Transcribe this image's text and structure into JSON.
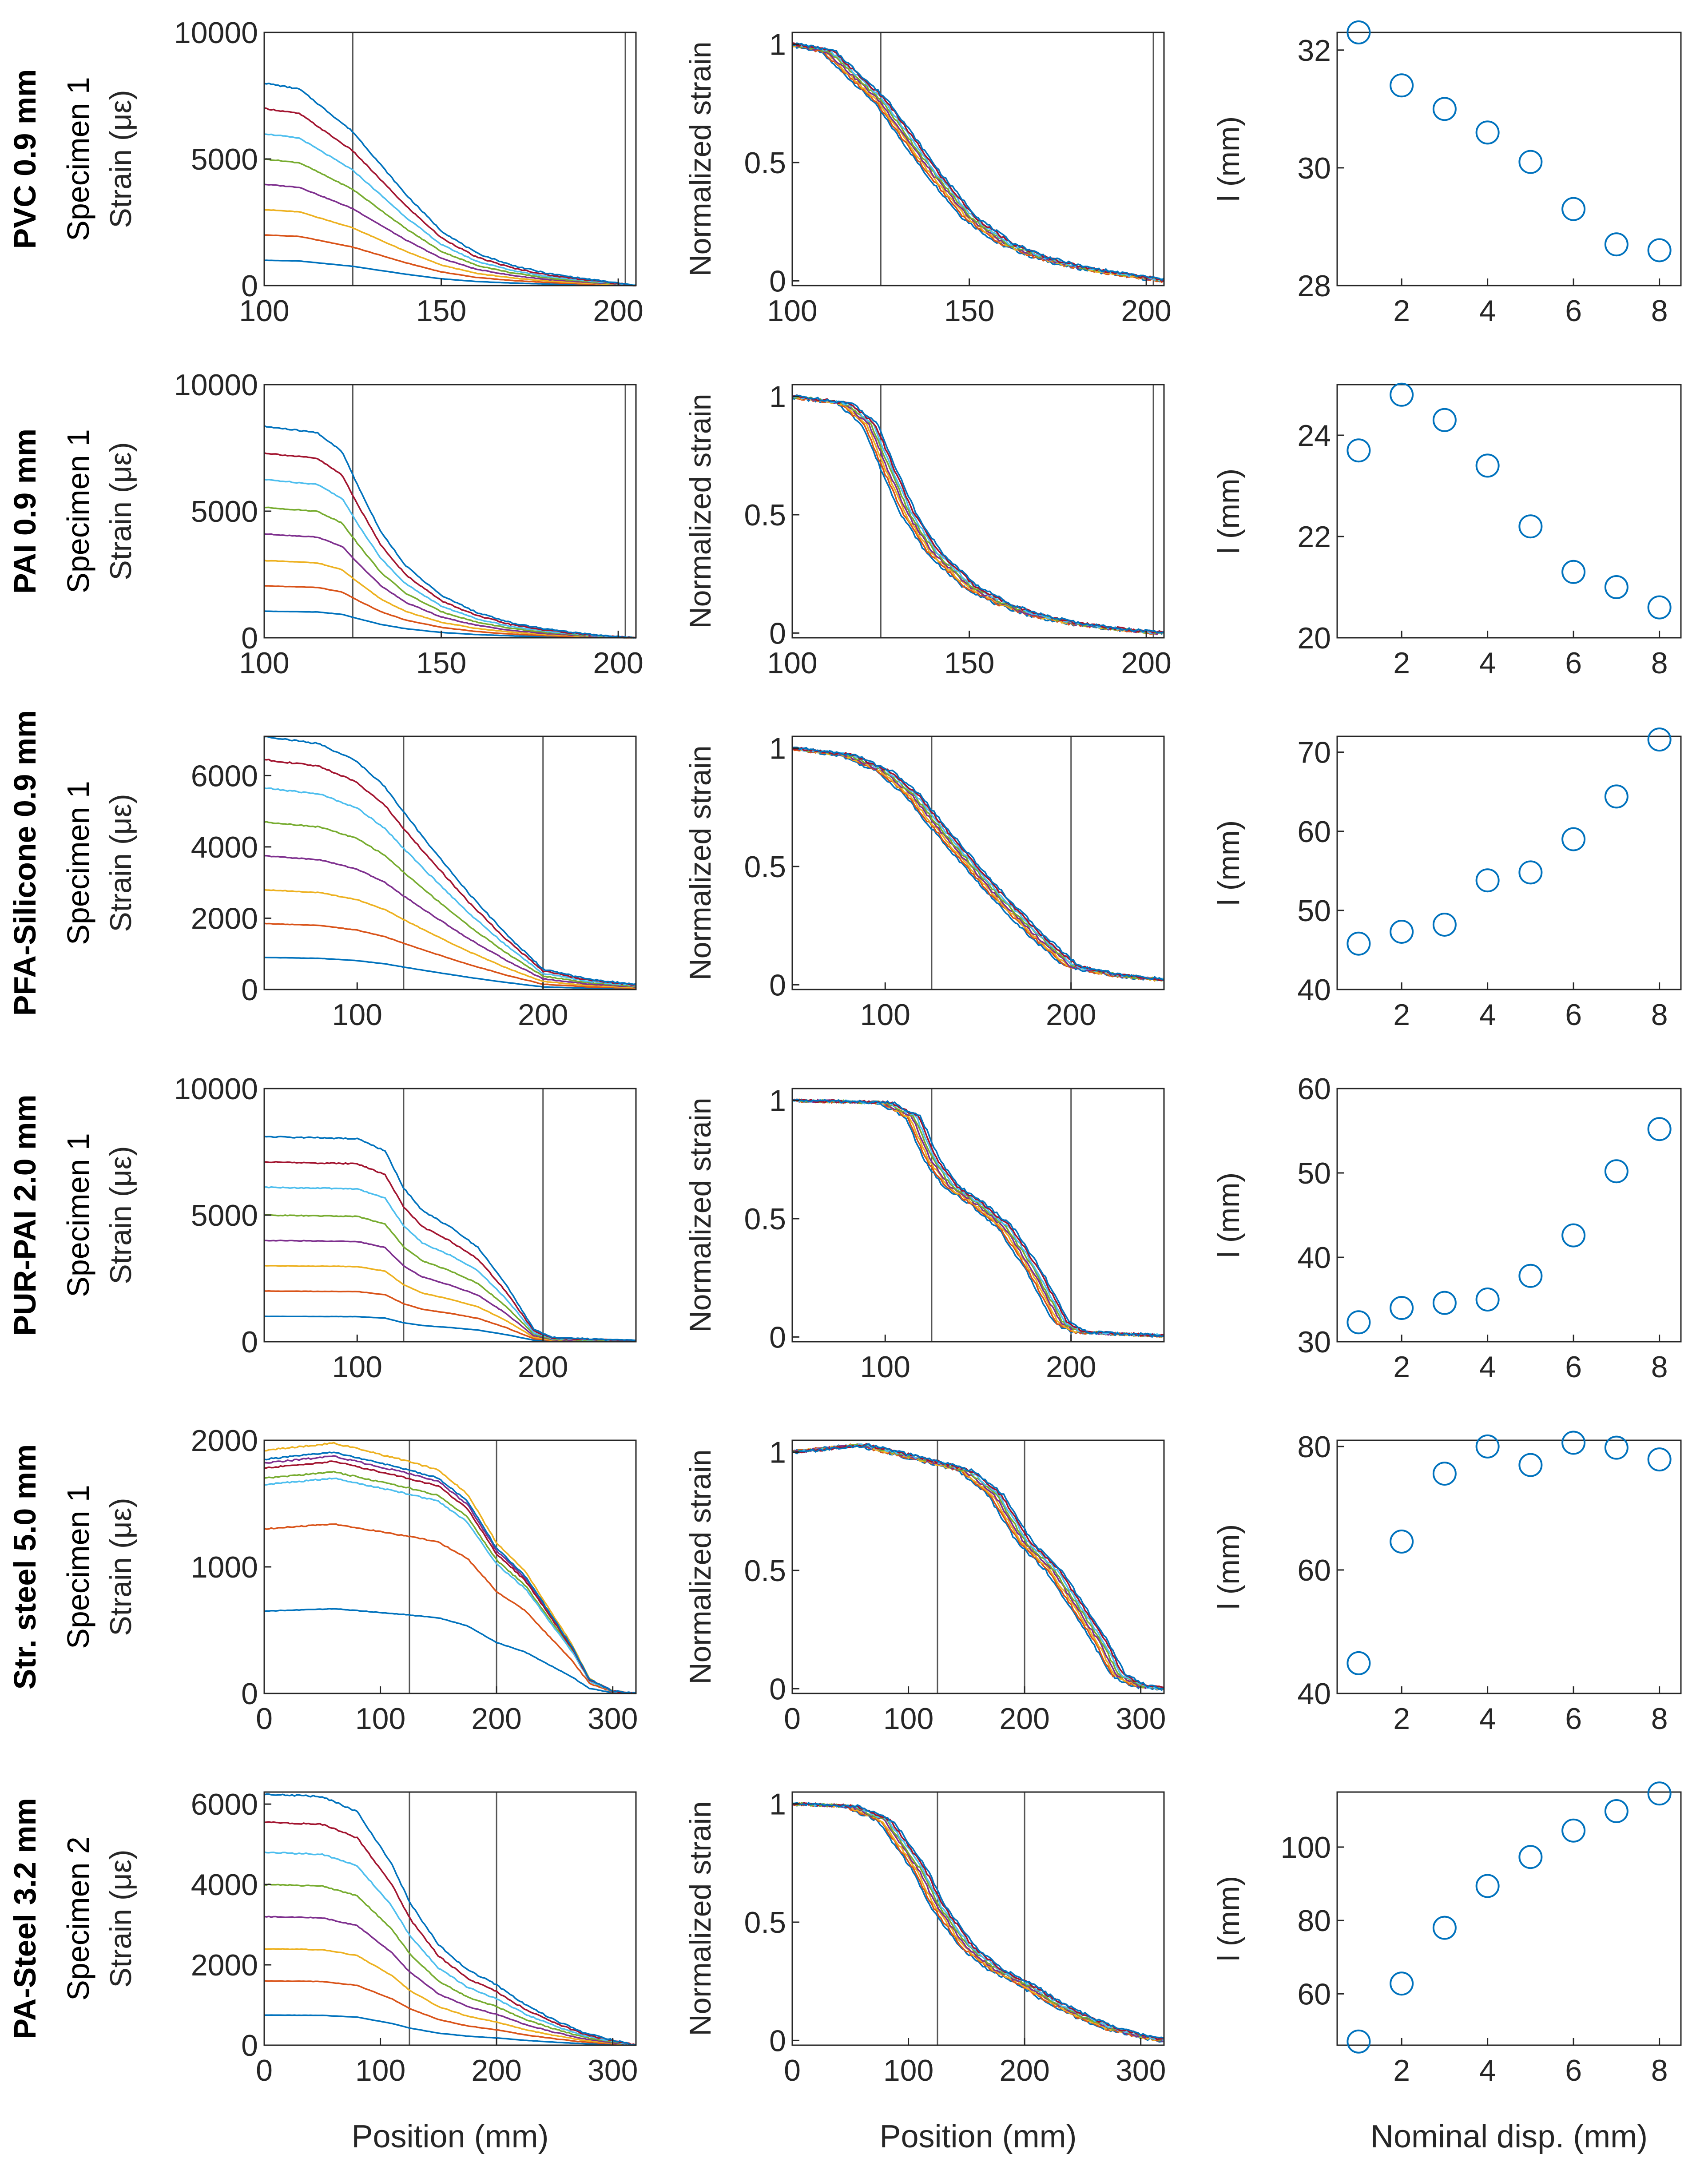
{
  "chart_data": {
    "type": "line-and-scatter-grid",
    "series_colors": [
      "#0072BD",
      "#D95319",
      "#EDB120",
      "#7E2F8E",
      "#77AC30",
      "#4DBEEE",
      "#A2142F",
      "#0072BD"
    ],
    "marker_color": "#0072BD",
    "column_xlabels": [
      "Position (mm)",
      "Position (mm)",
      "Nominal disp. (mm)"
    ],
    "normalized_ylabel": "Normalized strain",
    "l_ylabel": "l (mm)",
    "nominal_disp": [
      1,
      2,
      3,
      4,
      5,
      6,
      7,
      8
    ],
    "rows": [
      {
        "material": "PVC 0.9 mm",
        "specimen": "Specimen 1",
        "strain_label": "Strain (με)",
        "xlim": [
          100,
          205
        ],
        "xticks": [
          "100",
          "150",
          "200"
        ],
        "strain_ylim": [
          0,
          10000
        ],
        "strain_yticks": [
          "0",
          "5000",
          "10000"
        ],
        "norm_yticks": [
          "0",
          "0.5",
          "1"
        ],
        "vlines": [
          125,
          202
        ],
        "plateau": [
          1000,
          2000,
          3000,
          4000,
          5000,
          6000,
          7000,
          8000
        ],
        "norm_profile": [
          [
            100,
            1.0
          ],
          [
            110,
            0.97
          ],
          [
            125,
            0.76
          ],
          [
            140,
            0.45
          ],
          [
            150,
            0.27
          ],
          [
            160,
            0.16
          ],
          [
            170,
            0.1
          ],
          [
            180,
            0.06
          ],
          [
            190,
            0.035
          ],
          [
            200,
            0.012
          ],
          [
            205,
            0.0
          ]
        ],
        "l_values": [
          32.3,
          31.4,
          31.0,
          30.6,
          30.1,
          29.3,
          28.7,
          28.6
        ],
        "l_ylim": [
          28,
          32.3
        ],
        "l_yticks": [
          "28",
          "30",
          "32"
        ]
      },
      {
        "material": "PAI 0.9 mm",
        "specimen": "Specimen 1",
        "strain_label": "Strain (με)",
        "xlim": [
          100,
          205
        ],
        "xticks": [
          "100",
          "150",
          "200"
        ],
        "strain_ylim": [
          0,
          10000
        ],
        "strain_yticks": [
          "0",
          "5000",
          "10000"
        ],
        "norm_yticks": [
          "0",
          "0.5",
          "1"
        ],
        "vlines": [
          125,
          202
        ],
        "plateau": [
          1050,
          2050,
          3050,
          4100,
          5150,
          6250,
          7300,
          8350
        ],
        "norm_profile": [
          [
            100,
            1.0
          ],
          [
            115,
            0.97
          ],
          [
            122,
            0.88
          ],
          [
            127,
            0.7
          ],
          [
            133,
            0.5
          ],
          [
            140,
            0.34
          ],
          [
            150,
            0.2
          ],
          [
            160,
            0.12
          ],
          [
            170,
            0.07
          ],
          [
            180,
            0.04
          ],
          [
            190,
            0.02
          ],
          [
            200,
            0.005
          ],
          [
            205,
            0.0
          ]
        ],
        "l_values": [
          23.7,
          24.8,
          24.3,
          23.4,
          22.2,
          21.3,
          21.0,
          20.6
        ],
        "l_ylim": [
          20,
          25
        ],
        "l_yticks": [
          "20",
          "22",
          "24"
        ]
      },
      {
        "material": "PFA-Silicone 0.9 mm",
        "specimen": "Specimen 1",
        "strain_label": "Strain (με)",
        "xlim": [
          50,
          250
        ],
        "xticks": [
          "100",
          "200"
        ],
        "strain_ylim": [
          0,
          7100
        ],
        "strain_yticks": [
          "0",
          "2000",
          "4000",
          "6000"
        ],
        "norm_yticks": [
          "0",
          "0.5",
          "1"
        ],
        "vlines": [
          125,
          200
        ],
        "plateau": [
          900,
          1850,
          2800,
          3750,
          4700,
          5650,
          6450,
          7100
        ],
        "norm_profile": [
          [
            50,
            1.0
          ],
          [
            80,
            0.97
          ],
          [
            100,
            0.9
          ],
          [
            115,
            0.8
          ],
          [
            125,
            0.7
          ],
          [
            140,
            0.56
          ],
          [
            160,
            0.38
          ],
          [
            180,
            0.22
          ],
          [
            200,
            0.08
          ],
          [
            225,
            0.04
          ],
          [
            250,
            0.02
          ]
        ],
        "l_values": [
          45.8,
          47.3,
          48.2,
          53.8,
          54.8,
          59.0,
          64.4,
          71.6
        ],
        "l_ylim": [
          40,
          72
        ],
        "l_yticks": [
          "40",
          "50",
          "60",
          "70"
        ]
      },
      {
        "material": "PUR-PAI 2.0 mm",
        "specimen": "Specimen 1",
        "strain_label": "Strain (με)",
        "xlim": [
          50,
          250
        ],
        "xticks": [
          "100",
          "200"
        ],
        "strain_ylim": [
          0,
          10000
        ],
        "strain_yticks": [
          "0",
          "5000",
          "10000"
        ],
        "norm_yticks": [
          "0",
          "0.5",
          "1"
        ],
        "vlines": [
          125,
          200
        ],
        "plateau": [
          1000,
          2000,
          3000,
          4000,
          5000,
          6100,
          7100,
          8100
        ],
        "norm_profile": [
          [
            50,
            1.0
          ],
          [
            100,
            0.99
          ],
          [
            115,
            0.93
          ],
          [
            125,
            0.75
          ],
          [
            135,
            0.64
          ],
          [
            150,
            0.56
          ],
          [
            165,
            0.46
          ],
          [
            180,
            0.28
          ],
          [
            195,
            0.06
          ],
          [
            205,
            0.02
          ],
          [
            250,
            0.005
          ]
        ],
        "l_values": [
          32.3,
          34.0,
          34.6,
          35.0,
          37.8,
          42.6,
          50.2,
          55.2
        ],
        "l_ylim": [
          30,
          60
        ],
        "l_yticks": [
          "30",
          "40",
          "50",
          "60"
        ]
      },
      {
        "material": "Str. steel 5.0 mm",
        "specimen": "Specimen 1",
        "strain_label": "Strain (με)",
        "xlim": [
          0,
          320
        ],
        "xticks": [
          "0",
          "100",
          "200",
          "300"
        ],
        "strain_ylim": [
          0,
          2000
        ],
        "strain_yticks": [
          "0",
          "1000",
          "2000"
        ],
        "norm_yticks": [
          "0",
          "0.5",
          "1"
        ],
        "vlines": [
          125,
          200
        ],
        "plateau": [
          650,
          1300,
          1920,
          1820,
          1700,
          1650,
          1780,
          1850
        ],
        "norm_profile": [
          [
            0,
            1.0
          ],
          [
            60,
            1.03
          ],
          [
            120,
            0.96
          ],
          [
            150,
            0.92
          ],
          [
            175,
            0.82
          ],
          [
            200,
            0.62
          ],
          [
            225,
            0.5
          ],
          [
            245,
            0.35
          ],
          [
            265,
            0.2
          ],
          [
            280,
            0.06
          ],
          [
            300,
            0.01
          ],
          [
            320,
            0.0
          ]
        ],
        "l_values": [
          44.9,
          64.6,
          75.6,
          80.0,
          77.0,
          80.6,
          79.8,
          77.9
        ],
        "l_ylim": [
          40,
          81
        ],
        "l_yticks": [
          "40",
          "60",
          "80"
        ]
      },
      {
        "material": "PA-Steel 3.2 mm",
        "specimen": "Specimen 2",
        "strain_label": "Strain (με)",
        "xlim": [
          0,
          320
        ],
        "xticks": [
          "0",
          "100",
          "200",
          "300"
        ],
        "strain_ylim": [
          0,
          6300
        ],
        "strain_yticks": [
          "0",
          "2000",
          "4000",
          "6000"
        ],
        "norm_yticks": [
          "0",
          "0.5",
          "1"
        ],
        "vlines": [
          125,
          200
        ],
        "plateau": [
          750,
          1600,
          2400,
          3200,
          4000,
          4800,
          5550,
          6250
        ],
        "norm_profile": [
          [
            0,
            1.0
          ],
          [
            50,
            0.99
          ],
          [
            80,
            0.93
          ],
          [
            110,
            0.72
          ],
          [
            125,
            0.57
          ],
          [
            150,
            0.4
          ],
          [
            175,
            0.3
          ],
          [
            200,
            0.24
          ],
          [
            225,
            0.16
          ],
          [
            250,
            0.1
          ],
          [
            275,
            0.05
          ],
          [
            300,
            0.02
          ],
          [
            320,
            0.0
          ]
        ],
        "l_values": [
          47.0,
          62.8,
          78.0,
          89.4,
          97.3,
          104.5,
          109.8,
          114.6
        ],
        "l_ylim": [
          46,
          115
        ],
        "l_yticks": [
          "60",
          "80",
          "100"
        ]
      }
    ]
  }
}
